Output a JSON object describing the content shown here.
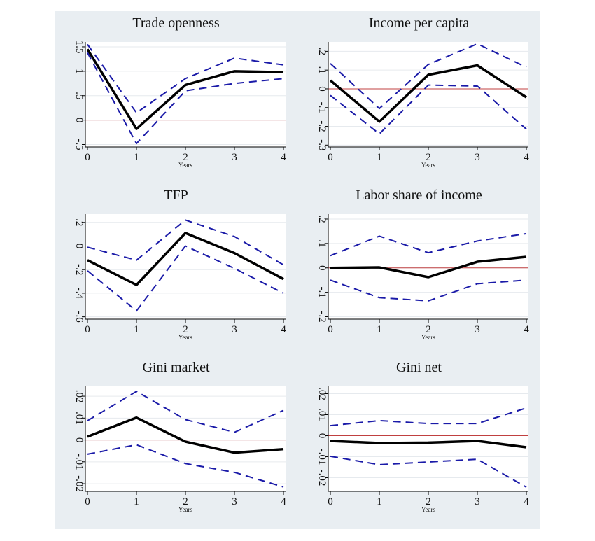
{
  "colors": {
    "figure_bg": "#e9eef2",
    "plot_bg": "#ffffff",
    "estimate": "#000000",
    "confidence_band": "#1a1aa8",
    "zero_line": "#c04040",
    "grid": "#e6eaee"
  },
  "chart_data": [
    {
      "type": "line",
      "title": "Trade openness",
      "xlabel": "Years",
      "ylabel": "",
      "x": [
        0,
        1,
        2,
        3,
        4
      ],
      "xticks": [
        "0",
        "1",
        "2",
        "3",
        "4"
      ],
      "ylim": [
        -0.55,
        1.6
      ],
      "yticks": [
        -0.5,
        0,
        0.5,
        1,
        1.5
      ],
      "ytick_labels": [
        "-.5",
        "0",
        ".5",
        "1",
        "1.5"
      ],
      "zero_line": 0,
      "series": [
        {
          "role": "estimate",
          "values": [
            1.45,
            -0.18,
            0.72,
            1.0,
            0.98
          ]
        },
        {
          "role": "upper",
          "values": [
            1.55,
            0.15,
            0.85,
            1.27,
            1.13
          ]
        },
        {
          "role": "lower",
          "values": [
            1.38,
            -0.48,
            0.6,
            0.75,
            0.85
          ]
        }
      ]
    },
    {
      "type": "line",
      "title": "Income per capita",
      "xlabel": "Years",
      "ylabel": "",
      "x": [
        0,
        1,
        2,
        3,
        4
      ],
      "xticks": [
        "0",
        "1",
        "2",
        "3",
        "4"
      ],
      "ylim": [
        -0.31,
        0.25
      ],
      "yticks": [
        -0.3,
        -0.2,
        -0.1,
        0,
        0.1,
        0.2
      ],
      "ytick_labels": [
        "-.3",
        "-.2",
        "-.1",
        "0",
        ".1",
        ".2"
      ],
      "zero_line": 0,
      "series": [
        {
          "role": "estimate",
          "values": [
            0.045,
            -0.175,
            0.075,
            0.125,
            -0.045
          ]
        },
        {
          "role": "upper",
          "values": [
            0.135,
            -0.105,
            0.13,
            0.24,
            0.115
          ]
        },
        {
          "role": "lower",
          "values": [
            -0.035,
            -0.24,
            0.02,
            0.015,
            -0.215
          ]
        }
      ]
    },
    {
      "type": "line",
      "title": "TFP",
      "xlabel": "Years",
      "ylabel": "",
      "x": [
        0,
        1,
        2,
        3,
        4
      ],
      "xticks": [
        "0",
        "1",
        "2",
        "3",
        "4"
      ],
      "ylim": [
        -0.62,
        0.27
      ],
      "yticks": [
        -0.6,
        -0.4,
        -0.2,
        0,
        0.2
      ],
      "ytick_labels": [
        "-.6",
        "-.4",
        "-.2",
        "0",
        ".2"
      ],
      "zero_line": 0,
      "series": [
        {
          "role": "estimate",
          "values": [
            -0.12,
            -0.33,
            0.11,
            -0.06,
            -0.28
          ]
        },
        {
          "role": "upper",
          "values": [
            -0.01,
            -0.12,
            0.22,
            0.08,
            -0.16
          ]
        },
        {
          "role": "lower",
          "values": [
            -0.21,
            -0.55,
            0.0,
            -0.19,
            -0.4
          ]
        }
      ]
    },
    {
      "type": "line",
      "title": "Labor share of income",
      "xlabel": "Years",
      "ylabel": "",
      "x": [
        0,
        1,
        2,
        3,
        4
      ],
      "xticks": [
        "0",
        "1",
        "2",
        "3",
        "4"
      ],
      "ylim": [
        -0.21,
        0.22
      ],
      "yticks": [
        -0.2,
        -0.1,
        0,
        0.1,
        0.2
      ],
      "ytick_labels": [
        "-.2",
        "-.1",
        "0",
        ".1",
        ".2"
      ],
      "zero_line": 0,
      "series": [
        {
          "role": "estimate",
          "values": [
            0.0,
            0.002,
            -0.038,
            0.025,
            0.045
          ]
        },
        {
          "role": "upper",
          "values": [
            0.05,
            0.13,
            0.062,
            0.11,
            0.14
          ]
        },
        {
          "role": "lower",
          "values": [
            -0.05,
            -0.122,
            -0.135,
            -0.065,
            -0.05
          ]
        }
      ]
    },
    {
      "type": "line",
      "title": "Gini market",
      "xlabel": "Years",
      "ylabel": "",
      "x": [
        0,
        1,
        2,
        3,
        4
      ],
      "xticks": [
        "0",
        "1",
        "2",
        "3",
        "4"
      ],
      "ylim": [
        -0.0235,
        0.0245
      ],
      "yticks": [
        -0.02,
        -0.01,
        0,
        0.01,
        0.02
      ],
      "ytick_labels": [
        "-.02",
        "-.01",
        "0",
        ".01",
        ".02"
      ],
      "zero_line": 0,
      "series": [
        {
          "role": "estimate",
          "values": [
            0.0015,
            0.0102,
            -0.0008,
            -0.0058,
            -0.0042
          ]
        },
        {
          "role": "upper",
          "values": [
            0.0088,
            0.0222,
            0.0093,
            0.0035,
            0.0135
          ]
        },
        {
          "role": "lower",
          "values": [
            -0.0065,
            -0.0022,
            -0.0108,
            -0.0148,
            -0.0215
          ]
        }
      ]
    },
    {
      "type": "line",
      "title": "Gini net",
      "xlabel": "Years",
      "ylabel": "",
      "x": [
        0,
        1,
        2,
        3,
        4
      ],
      "xticks": [
        "0",
        "1",
        "2",
        "3",
        "4"
      ],
      "ylim": [
        -0.0265,
        0.0235
      ],
      "yticks": [
        -0.02,
        -0.01,
        0,
        0.01,
        0.02
      ],
      "ytick_labels": [
        "-.02",
        "-.01",
        "0",
        ".01",
        ".02"
      ],
      "zero_line": 0,
      "series": [
        {
          "role": "estimate",
          "values": [
            -0.0025,
            -0.0035,
            -0.0033,
            -0.0025,
            -0.0055
          ]
        },
        {
          "role": "upper",
          "values": [
            0.0048,
            0.0072,
            0.0058,
            0.0058,
            0.0132
          ]
        },
        {
          "role": "lower",
          "values": [
            -0.0098,
            -0.0138,
            -0.0125,
            -0.0112,
            -0.0245
          ]
        }
      ]
    }
  ]
}
